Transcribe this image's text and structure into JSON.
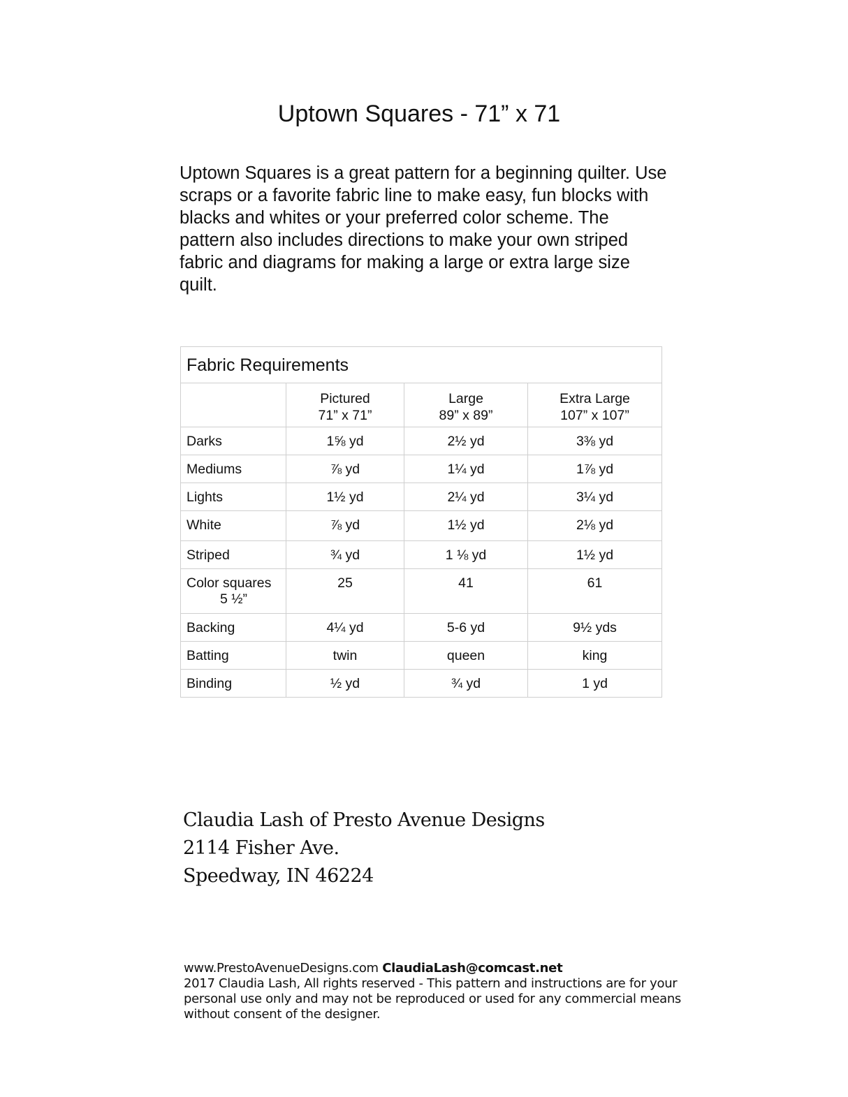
{
  "title": "Uptown Squares - 71” x 71",
  "intro": "Uptown Squares is a great pattern for a beginning quilter. Use scraps or a favorite fabric line to make easy, fun blocks with blacks and whites or your preferred color scheme.  The pattern also includes directions to make your own striped fabric and diagrams for making a large or extra large size quilt.",
  "table": {
    "title": "Fabric Requirements",
    "columns": [
      {
        "name": "Pictured",
        "size": "71” x 71”"
      },
      {
        "name": "Large",
        "size": "89” x 89”"
      },
      {
        "name": "Extra Large",
        "size": "107” x 107”"
      }
    ],
    "rows": [
      {
        "label": "Darks",
        "values": [
          "1⅝ yd",
          "2½ yd",
          "3⅜ yd"
        ]
      },
      {
        "label": "Mediums",
        "values": [
          "⅞ yd",
          "1¼ yd",
          "1⅞ yd"
        ]
      },
      {
        "label": "Lights",
        "values": [
          "1½ yd",
          "2¼ yd",
          "3¼ yd"
        ]
      },
      {
        "label": "White",
        "values": [
          "⅞ yd",
          "1½ yd",
          "2⅛ yd"
        ]
      },
      {
        "label": "Striped",
        "values": [
          "¾ yd",
          "1 ⅛ yd",
          "1½ yd"
        ]
      },
      {
        "label": "Color squares",
        "sublabel": "5 ½”",
        "values": [
          "25",
          "41",
          "61"
        ]
      },
      {
        "label": "Backing",
        "values": [
          "4¼ yd",
          "5-6 yd",
          "9½ yds"
        ]
      },
      {
        "label": "Batting",
        "values": [
          "twin",
          "queen",
          "king"
        ]
      },
      {
        "label": "Binding",
        "values": [
          "½ yd",
          "¾ yd",
          "1 yd"
        ]
      }
    ]
  },
  "address": {
    "line1": "Claudia Lash of Presto Avenue Designs",
    "line2": "2114 Fisher Ave.",
    "line3": "Speedway, IN 46224"
  },
  "footer": {
    "website": "www.PrestoAvenueDesigns.com",
    "email": "ClaudiaLash@comcast.net",
    "copyright": "2017 Claudia Lash, All rights reserved - This pattern and instructions are for your personal use only and may not be reproduced or used for any commercial means without consent of the designer."
  }
}
